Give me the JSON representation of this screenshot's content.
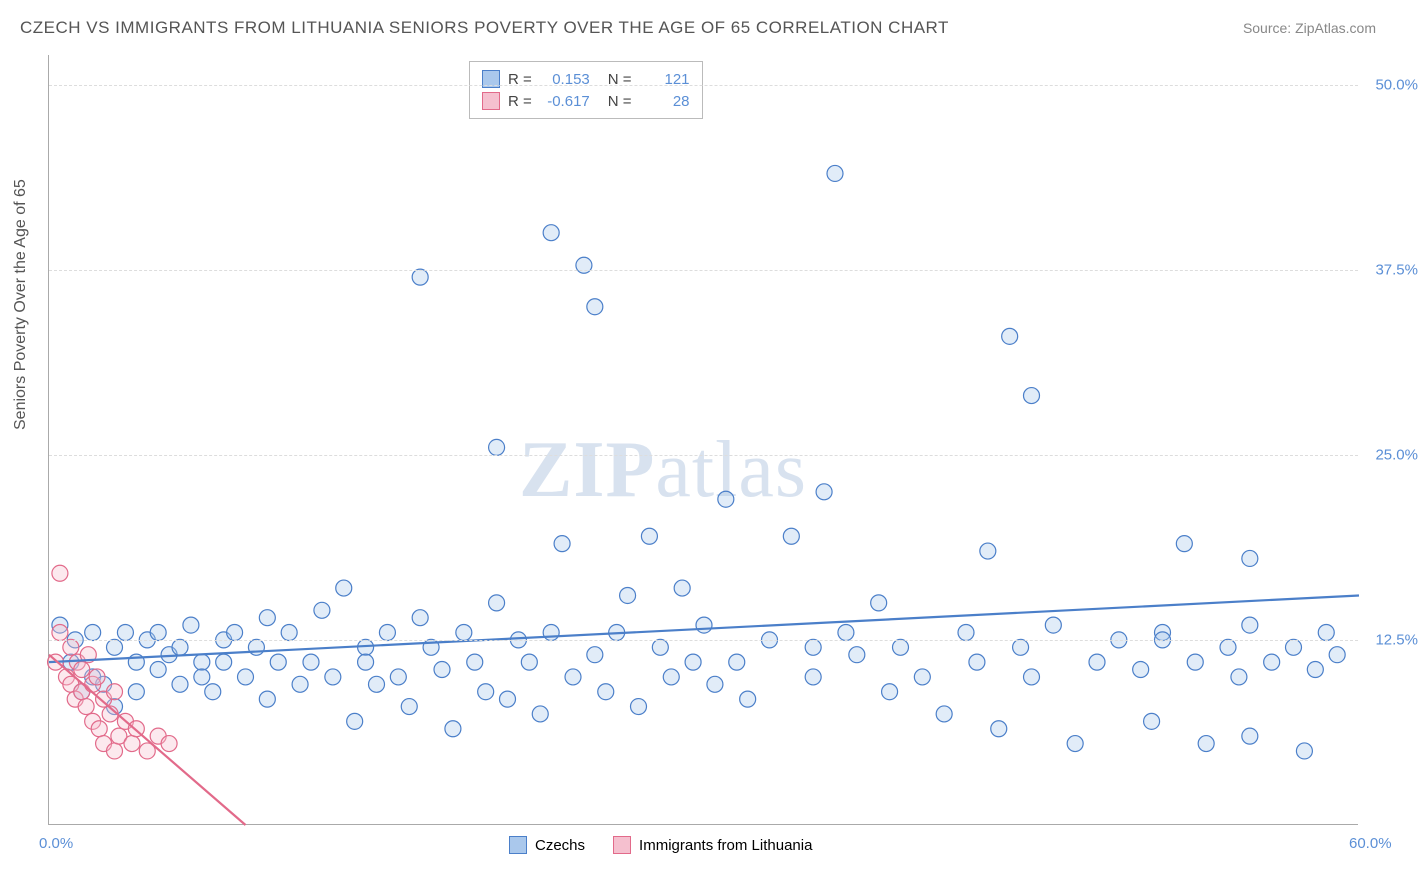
{
  "title": "CZECH VS IMMIGRANTS FROM LITHUANIA SENIORS POVERTY OVER THE AGE OF 65 CORRELATION CHART",
  "source": "Source: ZipAtlas.com",
  "ylabel": "Seniors Poverty Over the Age of 65",
  "watermark_bold": "ZIP",
  "watermark_rest": "atlas",
  "chart": {
    "type": "scatter",
    "xlim": [
      0,
      60
    ],
    "ylim": [
      0,
      52
    ],
    "x_ticks": [
      {
        "v": 0,
        "label": "0.0%"
      },
      {
        "v": 60,
        "label": "60.0%"
      }
    ],
    "y_ticks": [
      {
        "v": 12.5,
        "label": "12.5%"
      },
      {
        "v": 25,
        "label": "25.0%"
      },
      {
        "v": 37.5,
        "label": "37.5%"
      },
      {
        "v": 50,
        "label": "50.0%"
      }
    ],
    "background_color": "#ffffff",
    "grid_color": "#dddddd",
    "axis_color": "#aaaaaa",
    "tick_label_color": "#5b8fd6",
    "marker_radius": 8,
    "marker_stroke_width": 1.2,
    "marker_fill_opacity": 0.35,
    "trend_line_width": 2.2,
    "series": [
      {
        "name": "Czechs",
        "stroke": "#4b7fc9",
        "fill": "#aac8ec",
        "R": "0.153",
        "N": "121",
        "trend": {
          "x1": 0,
          "y1": 11.0,
          "x2": 60,
          "y2": 15.5
        },
        "points": [
          [
            0.5,
            13.5
          ],
          [
            1,
            11
          ],
          [
            1.2,
            12.5
          ],
          [
            1.5,
            9
          ],
          [
            2,
            10
          ],
          [
            2,
            13
          ],
          [
            2.5,
            9.5
          ],
          [
            3,
            8
          ],
          [
            3,
            12
          ],
          [
            3.5,
            13
          ],
          [
            4,
            11
          ],
          [
            4,
            9
          ],
          [
            4.5,
            12.5
          ],
          [
            5,
            10.5
          ],
          [
            5,
            13
          ],
          [
            5.5,
            11.5
          ],
          [
            6,
            9.5
          ],
          [
            6,
            12
          ],
          [
            6.5,
            13.5
          ],
          [
            7,
            11
          ],
          [
            7,
            10
          ],
          [
            7.5,
            9
          ],
          [
            8,
            12.5
          ],
          [
            8,
            11
          ],
          [
            8.5,
            13
          ],
          [
            9,
            10
          ],
          [
            9.5,
            12
          ],
          [
            10,
            8.5
          ],
          [
            10,
            14
          ],
          [
            10.5,
            11
          ],
          [
            11,
            13
          ],
          [
            11.5,
            9.5
          ],
          [
            12,
            11
          ],
          [
            12.5,
            14.5
          ],
          [
            13,
            10
          ],
          [
            13.5,
            16
          ],
          [
            14,
            7
          ],
          [
            14.5,
            12
          ],
          [
            14.5,
            11
          ],
          [
            15,
            9.5
          ],
          [
            15.5,
            13
          ],
          [
            16,
            10
          ],
          [
            16.5,
            8
          ],
          [
            17,
            14
          ],
          [
            17,
            37
          ],
          [
            17.5,
            12
          ],
          [
            18,
            10.5
          ],
          [
            18.5,
            6.5
          ],
          [
            19,
            13
          ],
          [
            19.5,
            11
          ],
          [
            20,
            9
          ],
          [
            20.5,
            15
          ],
          [
            20.5,
            25.5
          ],
          [
            21,
            8.5
          ],
          [
            21.5,
            12.5
          ],
          [
            22,
            11
          ],
          [
            22.5,
            7.5
          ],
          [
            23,
            40
          ],
          [
            23,
            13
          ],
          [
            23.5,
            19
          ],
          [
            24,
            10
          ],
          [
            24.5,
            37.8
          ],
          [
            25,
            35
          ],
          [
            25,
            11.5
          ],
          [
            25.5,
            9
          ],
          [
            26,
            13
          ],
          [
            26.5,
            15.5
          ],
          [
            27,
            8
          ],
          [
            27.5,
            19.5
          ],
          [
            28,
            12
          ],
          [
            28.5,
            10
          ],
          [
            29,
            16
          ],
          [
            29.5,
            11
          ],
          [
            30,
            13.5
          ],
          [
            30.5,
            9.5
          ],
          [
            31,
            22
          ],
          [
            31.5,
            11
          ],
          [
            32,
            8.5
          ],
          [
            33,
            12.5
          ],
          [
            34,
            19.5
          ],
          [
            35,
            10
          ],
          [
            35,
            12
          ],
          [
            35.5,
            22.5
          ],
          [
            36,
            44
          ],
          [
            36.5,
            13
          ],
          [
            37,
            11.5
          ],
          [
            38,
            15
          ],
          [
            38.5,
            9
          ],
          [
            39,
            12
          ],
          [
            40,
            10
          ],
          [
            41,
            7.5
          ],
          [
            42,
            13
          ],
          [
            42.5,
            11
          ],
          [
            43,
            18.5
          ],
          [
            43.5,
            6.5
          ],
          [
            44,
            33
          ],
          [
            44.5,
            12
          ],
          [
            45,
            10
          ],
          [
            45,
            29
          ],
          [
            46,
            13.5
          ],
          [
            47,
            5.5
          ],
          [
            48,
            11
          ],
          [
            49,
            12.5
          ],
          [
            50,
            10.5
          ],
          [
            50.5,
            7
          ],
          [
            51,
            13
          ],
          [
            52,
            19
          ],
          [
            52.5,
            11
          ],
          [
            53,
            5.5
          ],
          [
            54,
            12
          ],
          [
            54.5,
            10
          ],
          [
            55,
            13.5
          ],
          [
            55,
            18
          ],
          [
            56,
            11
          ],
          [
            57,
            12
          ],
          [
            57.5,
            5
          ],
          [
            58,
            10.5
          ],
          [
            58.5,
            13
          ],
          [
            59,
            11.5
          ],
          [
            55,
            6
          ],
          [
            51,
            12.5
          ]
        ]
      },
      {
        "name": "Immigrants from Lithuania",
        "stroke": "#e26a8a",
        "fill": "#f5c0cf",
        "R": "-0.617",
        "N": "28",
        "trend": {
          "x1": 0,
          "y1": 11.5,
          "x2": 9,
          "y2": 0
        },
        "points": [
          [
            0.3,
            11
          ],
          [
            0.5,
            13
          ],
          [
            0.5,
            17
          ],
          [
            0.8,
            10
          ],
          [
            1,
            9.5
          ],
          [
            1,
            12
          ],
          [
            1.2,
            8.5
          ],
          [
            1.3,
            11
          ],
          [
            1.5,
            9
          ],
          [
            1.5,
            10.5
          ],
          [
            1.7,
            8
          ],
          [
            1.8,
            11.5
          ],
          [
            2,
            7
          ],
          [
            2,
            9.5
          ],
          [
            2.2,
            10
          ],
          [
            2.3,
            6.5
          ],
          [
            2.5,
            8.5
          ],
          [
            2.5,
            5.5
          ],
          [
            2.8,
            7.5
          ],
          [
            3,
            9
          ],
          [
            3,
            5
          ],
          [
            3.2,
            6
          ],
          [
            3.5,
            7
          ],
          [
            3.8,
            5.5
          ],
          [
            4,
            6.5
          ],
          [
            4.5,
            5
          ],
          [
            5,
            6
          ],
          [
            5.5,
            5.5
          ]
        ]
      }
    ],
    "stat_legend_labels": {
      "R": "R =",
      "N": "N ="
    }
  },
  "bottom_legend": [
    {
      "label": "Czechs",
      "stroke": "#4b7fc9",
      "fill": "#aac8ec"
    },
    {
      "label": "Immigrants from Lithuania",
      "stroke": "#e26a8a",
      "fill": "#f5c0cf"
    }
  ]
}
